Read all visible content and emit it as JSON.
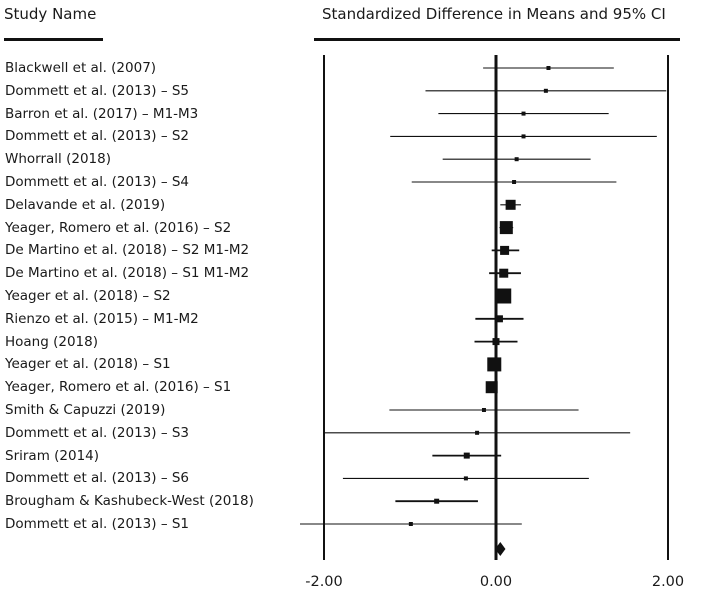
{
  "header": {
    "left": "Study Name",
    "right": "Standardized Difference in Means and 95% CI"
  },
  "chart_data": {
    "type": "forest",
    "xlim": [
      -2.0,
      2.0
    ],
    "x_ticks": [
      -2.0,
      0.0,
      2.0
    ],
    "x_tick_labels": [
      "-2.00",
      "0.00",
      "2.00"
    ],
    "studies": [
      {
        "name": "Blackwell et al. (2007)",
        "est": 0.61,
        "lo": -0.15,
        "hi": 1.37,
        "weight": 0.15
      },
      {
        "name": "Dommett et al. (2013) – S5",
        "est": 0.58,
        "lo": -0.82,
        "hi": 1.98,
        "weight": 0.1
      },
      {
        "name": "Barron et al. (2017) – M1-M3",
        "est": 0.32,
        "lo": -0.67,
        "hi": 1.31,
        "weight": 0.2
      },
      {
        "name": "Dommett et al. (2013) – S2",
        "est": 0.32,
        "lo": -1.23,
        "hi": 1.87,
        "weight": 0.1
      },
      {
        "name": "Whorrall (2018)",
        "est": 0.24,
        "lo": -0.62,
        "hi": 1.1,
        "weight": 0.2
      },
      {
        "name": "Dommett et al. (2013) – S4",
        "est": 0.21,
        "lo": -0.98,
        "hi": 1.4,
        "weight": 0.1
      },
      {
        "name": "Delavande et al. (2019)",
        "est": 0.17,
        "lo": 0.05,
        "hi": 0.29,
        "weight": 1.0
      },
      {
        "name": "Yeager, Romero et al. (2016) – S2",
        "est": 0.12,
        "lo": 0.04,
        "hi": 0.2,
        "weight": 1.4
      },
      {
        "name": "De Martino et al. (2018) – S2 M1-M2",
        "est": 0.1,
        "lo": -0.05,
        "hi": 0.27,
        "weight": 0.9
      },
      {
        "name": "De Martino et al. (2018) – S1 M1-M2",
        "est": 0.09,
        "lo": -0.08,
        "hi": 0.29,
        "weight": 0.8
      },
      {
        "name": "Yeager et al. (2018) – S2",
        "est": 0.09,
        "lo": 0.02,
        "hi": 0.16,
        "weight": 1.7
      },
      {
        "name": "Rienzo et al. (2015) – M1-M2",
        "est": 0.04,
        "lo": -0.24,
        "hi": 0.32,
        "weight": 0.6
      },
      {
        "name": "Hoang (2018)",
        "est": 0.0,
        "lo": -0.25,
        "hi": 0.25,
        "weight": 0.55
      },
      {
        "name": "Yeager et al. (2018) – S1",
        "est": -0.02,
        "lo": -0.08,
        "hi": 0.04,
        "weight": 1.6
      },
      {
        "name": "Yeager, Romero et al. (2016) – S1",
        "est": -0.05,
        "lo": -0.11,
        "hi": 0.01,
        "weight": 1.3
      },
      {
        "name": "Smith & Capuzzi (2019)",
        "est": -0.14,
        "lo": -1.24,
        "hi": 0.96,
        "weight": 0.15
      },
      {
        "name": "Dommett et al. (2013) – S3",
        "est": -0.22,
        "lo": -2.0,
        "hi": 1.56,
        "weight": 0.1
      },
      {
        "name": "Sriram (2014)",
        "est": -0.34,
        "lo": -0.74,
        "hi": 0.06,
        "weight": 0.4
      },
      {
        "name": "Dommett et al. (2013) – S6",
        "est": -0.35,
        "lo": -1.78,
        "hi": 1.08,
        "weight": 0.1
      },
      {
        "name": "Brougham & Kashubeck-West (2018)",
        "est": -0.69,
        "lo": -1.17,
        "hi": -0.21,
        "weight": 0.35
      },
      {
        "name": "Dommett et al. (2013) – S1",
        "est": -0.99,
        "lo": -2.28,
        "hi": 0.3,
        "weight": 0.15
      }
    ],
    "summary": {
      "est": 0.05,
      "lo": -0.01,
      "hi": 0.11
    }
  }
}
